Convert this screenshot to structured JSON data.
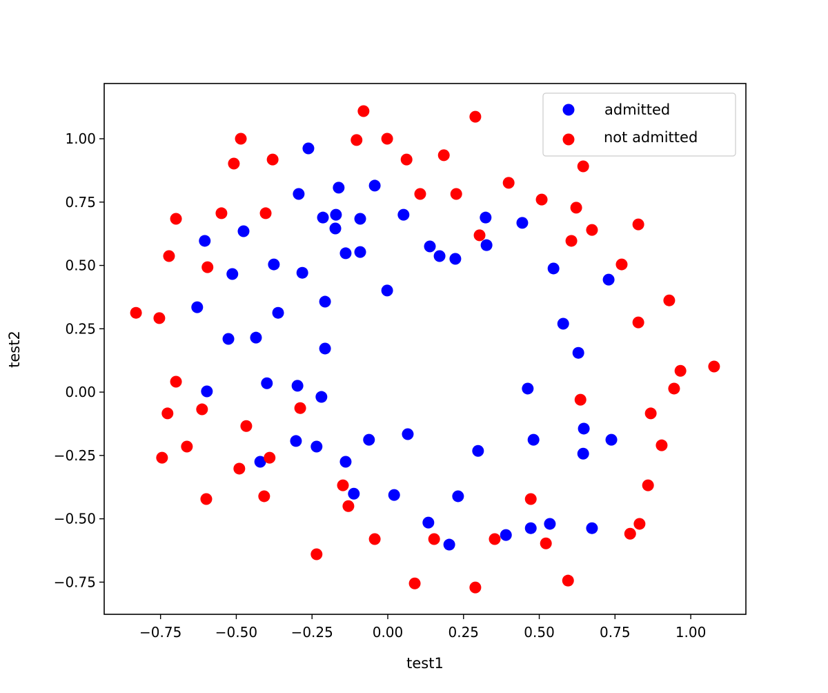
{
  "chart_data": {
    "type": "scatter",
    "title": "",
    "xlabel": "test1",
    "ylabel": "test2",
    "xlim": [
      -0.936,
      1.182
    ],
    "ylim": [
      -0.877,
      1.218
    ],
    "xticks": [
      -0.75,
      -0.5,
      -0.25,
      0.0,
      0.25,
      0.5,
      0.75,
      1.0
    ],
    "yticks": [
      -0.75,
      -0.5,
      -0.25,
      0.0,
      0.25,
      0.5,
      0.75,
      1.0
    ],
    "xtick_labels": [
      "−0.75",
      "−0.50",
      "−0.25",
      "0.00",
      "0.25",
      "0.50",
      "0.75",
      "1.00"
    ],
    "ytick_labels": [
      "−0.75",
      "−0.50",
      "−0.25",
      "0.00",
      "0.25",
      "0.50",
      "0.75",
      "1.00"
    ],
    "grid": false,
    "legend_position": "top-right",
    "series": [
      {
        "name": "admitted",
        "color": "#0000ff",
        "points": [
          [
            -0.262,
            0.962
          ],
          [
            -0.294,
            0.782
          ],
          [
            -0.162,
            0.807
          ],
          [
            -0.043,
            0.815
          ],
          [
            -0.214,
            0.689
          ],
          [
            -0.171,
            0.7
          ],
          [
            -0.091,
            0.684
          ],
          [
            -0.173,
            0.646
          ],
          [
            -0.476,
            0.635
          ],
          [
            -0.604,
            0.597
          ],
          [
            0.052,
            0.7
          ],
          [
            -0.139,
            0.548
          ],
          [
            -0.091,
            0.553
          ],
          [
            -0.376,
            0.504
          ],
          [
            -0.282,
            0.471
          ],
          [
            -0.513,
            0.466
          ],
          [
            0.139,
            0.575
          ],
          [
            0.171,
            0.537
          ],
          [
            0.223,
            0.526
          ],
          [
            0.323,
            0.689
          ],
          [
            0.326,
            0.58
          ],
          [
            0.444,
            0.668
          ],
          [
            -0.002,
            0.401
          ],
          [
            -0.207,
            0.357
          ],
          [
            -0.362,
            0.313
          ],
          [
            -0.629,
            0.335
          ],
          [
            -0.526,
            0.21
          ],
          [
            -0.435,
            0.215
          ],
          [
            -0.207,
            0.172
          ],
          [
            0.547,
            0.488
          ],
          [
            0.729,
            0.444
          ],
          [
            0.579,
            0.27
          ],
          [
            0.629,
            0.155
          ],
          [
            -0.597,
            0.003
          ],
          [
            -0.399,
            0.035
          ],
          [
            -0.298,
            0.025
          ],
          [
            -0.219,
            -0.019
          ],
          [
            0.462,
            0.014
          ],
          [
            -0.303,
            -0.193
          ],
          [
            -0.235,
            -0.215
          ],
          [
            -0.062,
            -0.188
          ],
          [
            0.066,
            -0.166
          ],
          [
            -0.139,
            -0.275
          ],
          [
            -0.421,
            -0.275
          ],
          [
            -0.112,
            -0.401
          ],
          [
            0.021,
            -0.406
          ],
          [
            0.232,
            -0.411
          ],
          [
            0.298,
            -0.232
          ],
          [
            0.481,
            -0.188
          ],
          [
            0.647,
            -0.144
          ],
          [
            0.645,
            -0.243
          ],
          [
            0.738,
            -0.188
          ],
          [
            0.134,
            -0.515
          ],
          [
            0.203,
            -0.602
          ],
          [
            0.39,
            -0.564
          ],
          [
            0.472,
            -0.537
          ],
          [
            0.535,
            -0.52
          ],
          [
            0.674,
            -0.537
          ]
        ]
      },
      {
        "name": "not admitted",
        "color": "#ff0000",
        "points": [
          [
            -0.08,
            1.109
          ],
          [
            0.289,
            1.087
          ],
          [
            -0.485,
            1.0
          ],
          [
            -0.103,
            0.995
          ],
          [
            -0.002,
            1.0
          ],
          [
            -0.508,
            0.902
          ],
          [
            -0.38,
            0.918
          ],
          [
            0.062,
            0.918
          ],
          [
            0.185,
            0.935
          ],
          [
            0.645,
            0.891
          ],
          [
            -0.699,
            0.684
          ],
          [
            -0.549,
            0.706
          ],
          [
            -0.403,
            0.706
          ],
          [
            0.107,
            0.782
          ],
          [
            0.226,
            0.782
          ],
          [
            0.399,
            0.826
          ],
          [
            0.508,
            0.76
          ],
          [
            0.622,
            0.728
          ],
          [
            0.827,
            0.662
          ],
          [
            0.674,
            0.64
          ],
          [
            0.606,
            0.597
          ],
          [
            0.303,
            0.619
          ],
          [
            -0.722,
            0.537
          ],
          [
            -0.595,
            0.493
          ],
          [
            0.772,
            0.504
          ],
          [
            -0.831,
            0.313
          ],
          [
            -0.754,
            0.292
          ],
          [
            0.929,
            0.362
          ],
          [
            0.827,
            0.275
          ],
          [
            -0.699,
            0.041
          ],
          [
            0.966,
            0.084
          ],
          [
            1.077,
            0.101
          ],
          [
            0.945,
            0.014
          ],
          [
            0.636,
            -0.03
          ],
          [
            -0.613,
            -0.068
          ],
          [
            -0.289,
            -0.063
          ],
          [
            -0.727,
            -0.084
          ],
          [
            -0.467,
            -0.134
          ],
          [
            0.868,
            -0.084
          ],
          [
            -0.663,
            -0.215
          ],
          [
            -0.745,
            -0.259
          ],
          [
            -0.39,
            -0.259
          ],
          [
            0.904,
            -0.21
          ],
          [
            -0.49,
            -0.302
          ],
          [
            -0.148,
            -0.368
          ],
          [
            -0.13,
            -0.45
          ],
          [
            -0.408,
            -0.411
          ],
          [
            -0.599,
            -0.422
          ],
          [
            0.472,
            -0.422
          ],
          [
            0.859,
            -0.368
          ],
          [
            -0.043,
            -0.58
          ],
          [
            0.153,
            -0.58
          ],
          [
            0.353,
            -0.58
          ],
          [
            0.522,
            -0.597
          ],
          [
            0.8,
            -0.559
          ],
          [
            0.831,
            -0.52
          ],
          [
            -0.235,
            -0.64
          ],
          [
            0.089,
            -0.755
          ],
          [
            0.289,
            -0.771
          ],
          [
            0.595,
            -0.744
          ]
        ]
      }
    ]
  }
}
